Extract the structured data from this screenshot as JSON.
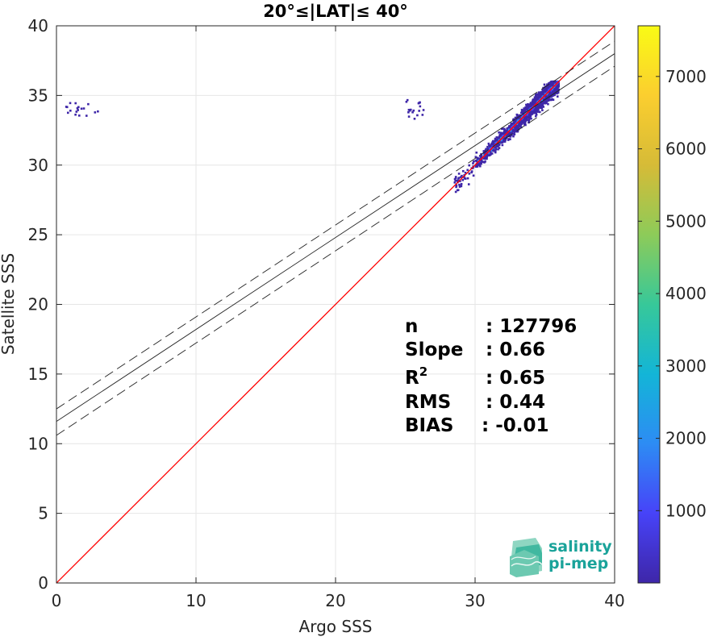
{
  "chart_data": {
    "type": "heatmap",
    "title": "20°≤|LAT|≤ 40°",
    "xlabel": "Argo SSS",
    "ylabel": "Satellite SSS",
    "xlim": [
      0,
      40
    ],
    "ylim": [
      0,
      40
    ],
    "xticks": [
      0,
      10,
      20,
      30,
      40
    ],
    "yticks": [
      0,
      5,
      10,
      15,
      20,
      25,
      30,
      35,
      40
    ],
    "grid": true,
    "colorbar": {
      "range": [
        1,
        7700
      ],
      "ticks": [
        1000,
        2000,
        3000,
        4000,
        5000,
        6000,
        7000
      ],
      "colormap": "parula",
      "colors": [
        "#3e26a8",
        "#4743f8",
        "#2d8cf4",
        "#13b5d7",
        "#37c899",
        "#8dcb59",
        "#d6bb37",
        "#fbce2f",
        "#f9fb15"
      ]
    },
    "lines": [
      {
        "name": "1:1",
        "color": "#ff0000",
        "x": [
          0,
          40
        ],
        "y": [
          0,
          40
        ],
        "style": "solid"
      },
      {
        "name": "fit",
        "color": "#222222",
        "x": [
          0,
          40
        ],
        "y": [
          11.6,
          38.0
        ],
        "style": "solid"
      },
      {
        "name": "fit-upper",
        "color": "#222222",
        "x": [
          0,
          40
        ],
        "y": [
          12.5,
          38.9
        ],
        "style": "dashed"
      },
      {
        "name": "fit-lower",
        "color": "#222222",
        "x": [
          0,
          40
        ],
        "y": [
          10.6,
          37.1
        ],
        "style": "dashed"
      }
    ],
    "density_clusters": [
      {
        "name": "main",
        "x_range": [
          30.0,
          36.0
        ],
        "y_range": [
          30.0,
          36.0
        ],
        "center_line": true
      },
      {
        "name": "outlier-low",
        "x_range": [
          0.4,
          3.0
        ],
        "y_range": [
          33.5,
          34.5
        ]
      },
      {
        "name": "outlier-mid",
        "x_range": [
          25.0,
          26.5
        ],
        "y_range": [
          33.3,
          34.7
        ]
      },
      {
        "name": "tail",
        "x_range": [
          28.5,
          30.5
        ],
        "y_range": [
          28.0,
          31.0
        ]
      }
    ],
    "stats": [
      {
        "label": "n",
        "value": ": 127796"
      },
      {
        "label": "Slope",
        "value": ": 0.66"
      },
      {
        "label": "R",
        "sup": "2",
        "value": ": 0.65"
      },
      {
        "label": "RMS",
        "value": ": 0.44"
      },
      {
        "label": "BIAS",
        "value": ": -0.01"
      }
    ]
  },
  "logo": {
    "line1": "salinity",
    "line2": "pi-mep"
  }
}
